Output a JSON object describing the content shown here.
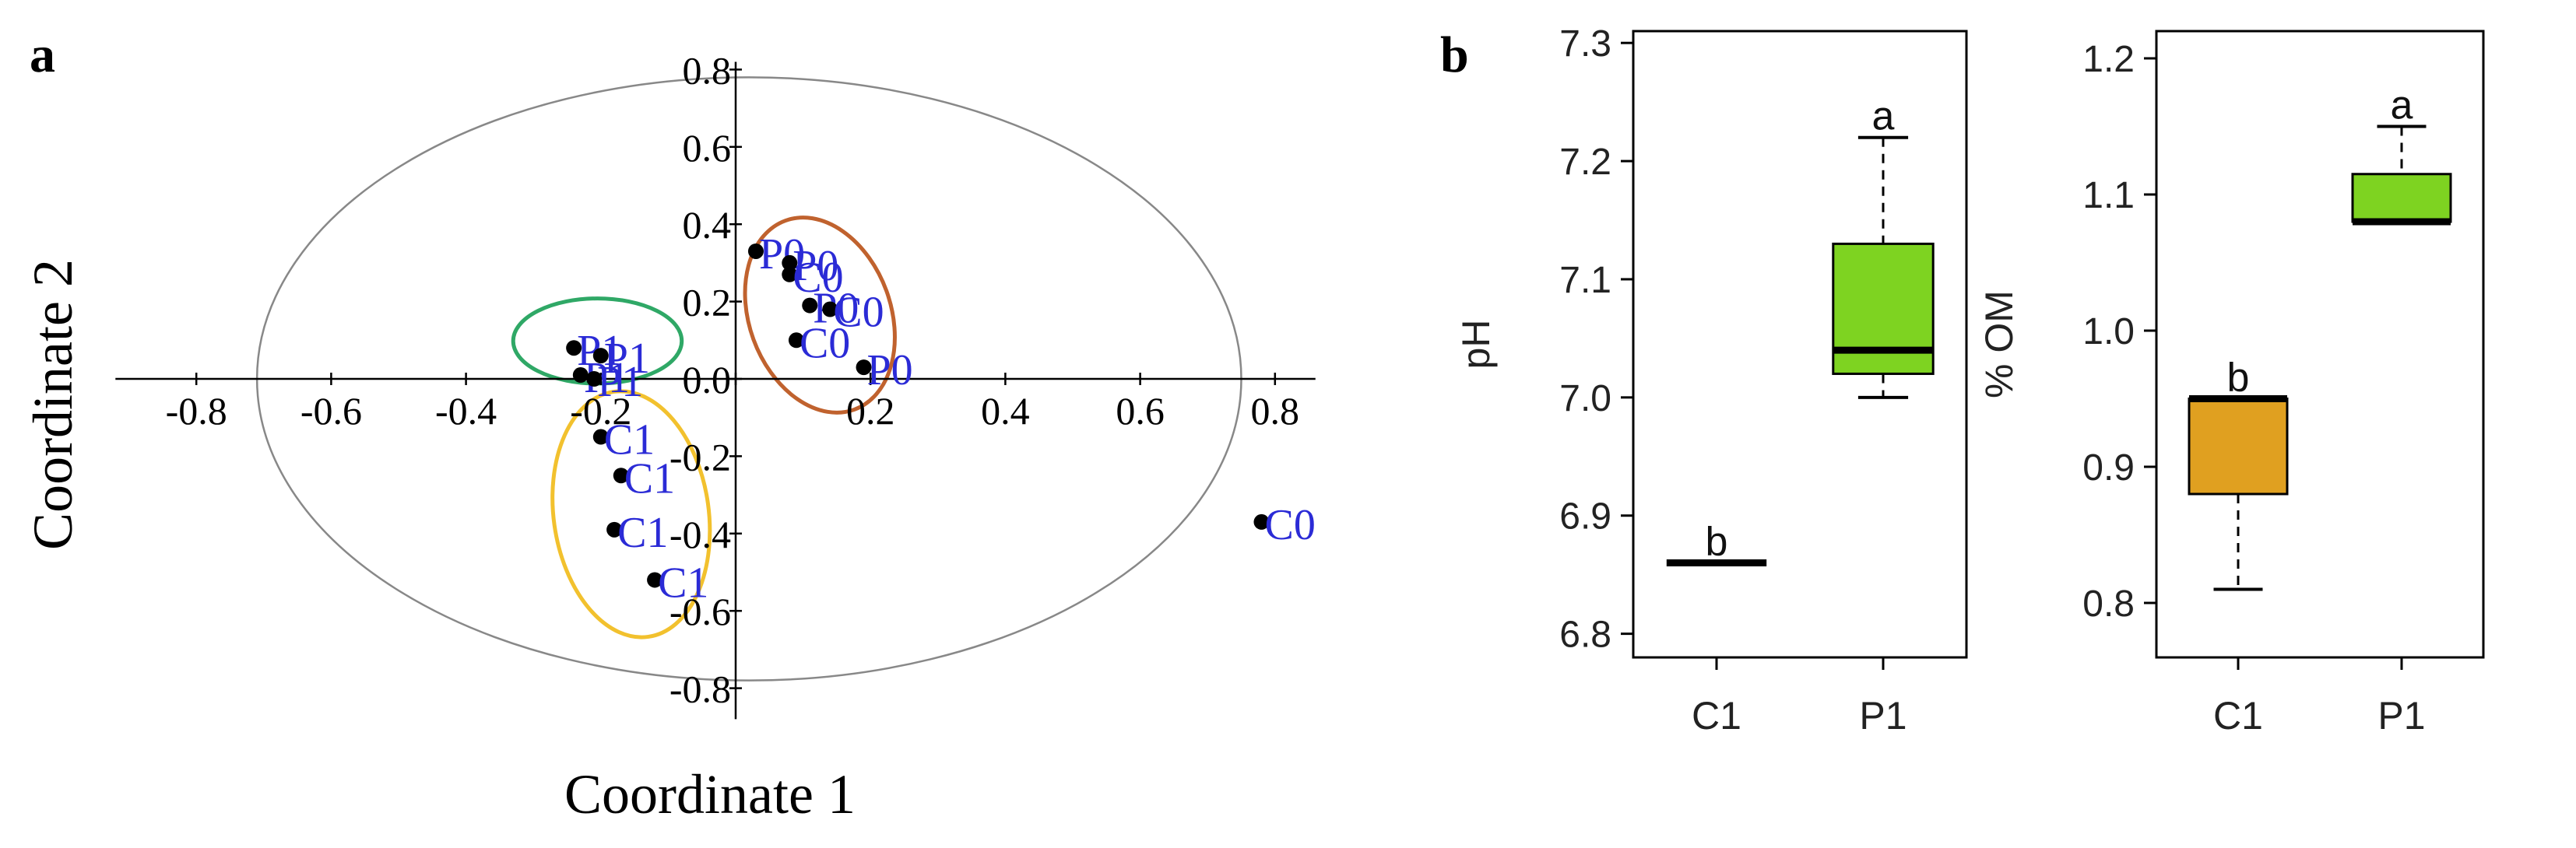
{
  "panels": {
    "a": {
      "label": "a"
    },
    "b": {
      "label": "b"
    }
  },
  "chart_data": [
    {
      "type": "scatter",
      "panel": "a",
      "xlabel": "Coordinate 1",
      "ylabel": "Coordinate 2",
      "xlim": [
        -0.8,
        0.8
      ],
      "ylim": [
        -0.8,
        0.8
      ],
      "xticks": [
        "-0.8",
        "-0.6",
        "-0.4",
        "-0.2",
        "0.0",
        "0.2",
        "0.4",
        "0.6",
        "0.8"
      ],
      "yticks": [
        "-0.8",
        "-0.6",
        "-0.4",
        "-0.2",
        "0.0",
        "0.2",
        "0.4",
        "0.6",
        "0.8"
      ],
      "grid": false,
      "points": [
        {
          "label": "P0",
          "x": 0.03,
          "y": 0.33
        },
        {
          "label": "P0",
          "x": 0.08,
          "y": 0.3
        },
        {
          "label": "C0",
          "x": 0.08,
          "y": 0.27
        },
        {
          "label": "P0",
          "x": 0.11,
          "y": 0.19
        },
        {
          "label": "C0",
          "x": 0.14,
          "y": 0.18
        },
        {
          "label": "C0",
          "x": 0.09,
          "y": 0.1
        },
        {
          "label": "P0",
          "x": 0.19,
          "y": 0.03
        },
        {
          "label": "P1",
          "x": -0.24,
          "y": 0.08
        },
        {
          "label": "P1",
          "x": -0.2,
          "y": 0.06
        },
        {
          "label": "P1",
          "x": -0.23,
          "y": 0.01
        },
        {
          "label": "P1",
          "x": -0.21,
          "y": 0.0
        },
        {
          "label": "C1",
          "x": -0.2,
          "y": -0.15
        },
        {
          "label": "C1",
          "x": -0.17,
          "y": -0.25
        },
        {
          "label": "C1",
          "x": -0.18,
          "y": -0.39
        },
        {
          "label": "C1",
          "x": -0.12,
          "y": -0.52
        },
        {
          "label": "C0",
          "x": 0.78,
          "y": -0.37
        }
      ],
      "groups": [
        {
          "name": "P0/C0",
          "color": "#c0622e"
        },
        {
          "name": "P1",
          "color": "#2fa866"
        },
        {
          "name": "C1",
          "color": "#f2c12e"
        }
      ],
      "outer_ellipse_color": "#888888"
    },
    {
      "type": "box",
      "panel": "b",
      "ylabel": "pH",
      "ylim": [
        6.78,
        7.31
      ],
      "yticks": [
        "6.8",
        "6.9",
        "7.0",
        "7.1",
        "7.2",
        "7.3"
      ],
      "categories": [
        "C1",
        "P1"
      ],
      "boxes": [
        {
          "category": "C1",
          "min": 6.86,
          "q1": 6.86,
          "median": 6.86,
          "q3": 6.86,
          "max": 6.86,
          "letter": "b",
          "color": "#000000"
        },
        {
          "category": "P1",
          "min": 7.0,
          "q1": 7.02,
          "median": 7.04,
          "q3": 7.13,
          "max": 7.22,
          "letter": "a",
          "color": "#7ed321"
        }
      ]
    },
    {
      "type": "box",
      "panel": "b",
      "ylabel": "% OM",
      "ylim": [
        0.76,
        1.22
      ],
      "yticks": [
        "0.8",
        "0.9",
        "1.0",
        "1.1",
        "1.2"
      ],
      "categories": [
        "C1",
        "P1"
      ],
      "boxes": [
        {
          "category": "C1",
          "min": 0.81,
          "q1": 0.88,
          "median": 0.95,
          "q3": 0.95,
          "max": 0.95,
          "letter": "b",
          "color": "#e0a020"
        },
        {
          "category": "P1",
          "min": 1.08,
          "q1": 1.08,
          "median": 1.08,
          "q3": 1.115,
          "max": 1.15,
          "letter": "a",
          "color": "#7ed321"
        }
      ]
    }
  ]
}
